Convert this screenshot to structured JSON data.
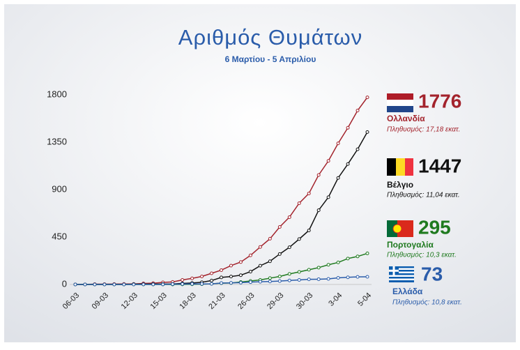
{
  "chart_data": {
    "type": "line",
    "title": "Αριθμός Θυμάτων",
    "subtitle": "6 Μαρτίου - 5 Απριλίου",
    "categories": [
      "06-03",
      null,
      null,
      "09-03",
      null,
      null,
      "12-03",
      null,
      null,
      "15-03",
      null,
      null,
      "18-03",
      null,
      null,
      "21-03",
      null,
      null,
      "26-03",
      null,
      null,
      "29-03",
      null,
      null,
      "30-03",
      null,
      null,
      "3-04",
      null,
      null,
      "5-04"
    ],
    "ylim": [
      0,
      1800
    ],
    "yticks": [
      0,
      450,
      900,
      1350,
      1800
    ],
    "grid": false,
    "series": [
      {
        "name": "Ολλανδία",
        "population": "Πληθυσμός: 17,18 εκατ.",
        "color": "#a3232c",
        "values": [
          1,
          1,
          3,
          3,
          4,
          5,
          5,
          10,
          12,
          20,
          24,
          43,
          58,
          76,
          106,
          136,
          179,
          213,
          276,
          356,
          434,
          546,
          639,
          771,
          864,
          1039,
          1173,
          1339,
          1487,
          1651,
          1776
        ]
      },
      {
        "name": "Βέλγιο",
        "population": "Πληθυσμός: 11,04 εκατ.",
        "color": "#111111",
        "values": [
          0,
          0,
          0,
          0,
          0,
          0,
          3,
          3,
          4,
          4,
          5,
          10,
          14,
          21,
          37,
          67,
          75,
          88,
          122,
          178,
          220,
          289,
          353,
          431,
          513,
          705,
          828,
          1011,
          1143,
          1283,
          1447
        ]
      },
      {
        "name": "Πορτογαλία",
        "population": "Πληθυσμός: 10,3 εκατ.",
        "color": "#1f7a1f",
        "values": [
          0,
          0,
          0,
          0,
          0,
          0,
          0,
          0,
          0,
          0,
          0,
          1,
          2,
          3,
          6,
          12,
          14,
          23,
          33,
          43,
          60,
          76,
          100,
          119,
          140,
          160,
          187,
          209,
          246,
          266,
          295
        ]
      },
      {
        "name": "Ελλάδα",
        "population": "Πληθυσμός: 10,8 εκατ.",
        "color": "#2a5caa",
        "values": [
          0,
          0,
          0,
          0,
          0,
          0,
          0,
          1,
          1,
          1,
          3,
          4,
          5,
          5,
          6,
          13,
          15,
          17,
          22,
          26,
          28,
          32,
          38,
          43,
          49,
          50,
          53,
          63,
          68,
          72,
          73
        ]
      }
    ]
  }
}
